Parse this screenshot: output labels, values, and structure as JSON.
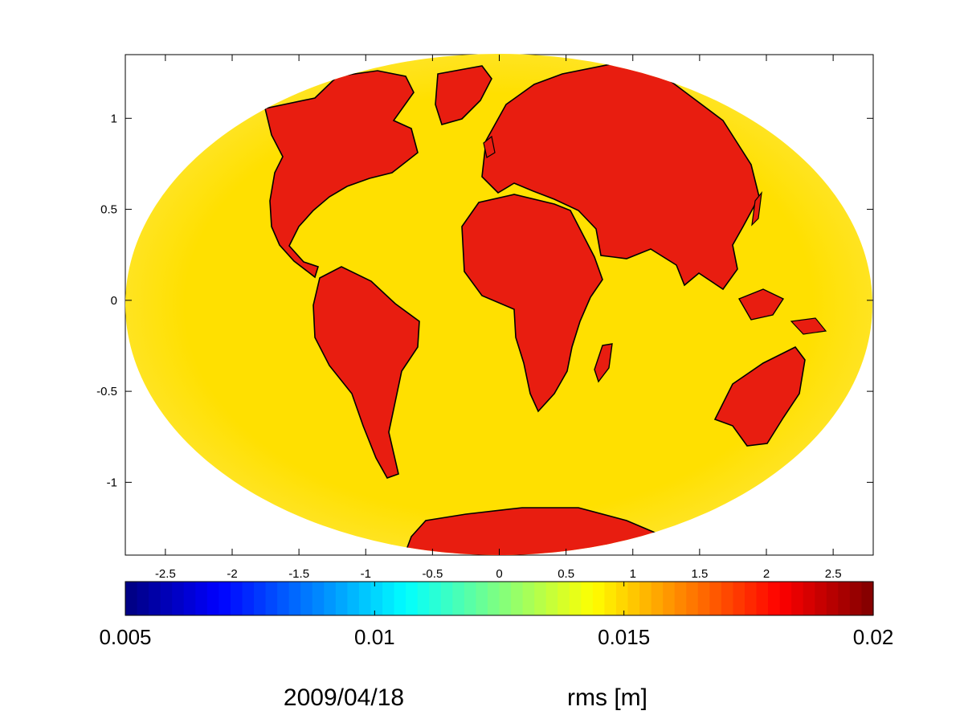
{
  "chart_data": {
    "type": "heatmap",
    "title": "",
    "map_projection": "elliptical world map (Aitoff / Hammer-style)",
    "xlim": [
      -2.8,
      2.8
    ],
    "ylim": [
      -1.4,
      1.35
    ],
    "x_ticks": [
      -2.5,
      -2,
      -1.5,
      -1,
      -0.5,
      0,
      0.5,
      1,
      1.5,
      2,
      2.5
    ],
    "x_tick_labels": [
      "-2.5",
      "-2",
      "-1.5",
      "-1",
      "-0.5",
      "0",
      "0.5",
      "1",
      "1.5",
      "2",
      "2.5"
    ],
    "y_ticks": [
      1,
      0.5,
      0,
      -0.5,
      -1
    ],
    "y_tick_labels": [
      "1",
      "0.5",
      "0",
      "-0.5",
      "-1"
    ],
    "grid": false,
    "field_description": "rms values mapped with the jet colormap; ocean regions ~0.015 (yellow), land regions ~0.018-0.019 (red), Antarctica ~0.018",
    "ocean_value": 0.0152,
    "land_value": 0.0185,
    "colormap": "jet",
    "colorbar": {
      "orientation": "horizontal",
      "clim": [
        0.005,
        0.02
      ],
      "ticks": [
        0.005,
        0.01,
        0.015,
        0.02
      ],
      "tick_labels": [
        "0.005",
        "0.01",
        "0.015",
        "0.02"
      ],
      "stops": [
        "#00008F",
        "#0000FF",
        "#00FFFF",
        "#FFFF00",
        "#FF0000",
        "#800000"
      ]
    },
    "date": "2009/04/18",
    "quantity_label": "rms [m]"
  },
  "colors": {
    "ocean": "#FFE000",
    "ocean_light": "#FFE84A",
    "land": "#E81D10",
    "land_dark": "#B4140C",
    "coast": "#000000"
  }
}
